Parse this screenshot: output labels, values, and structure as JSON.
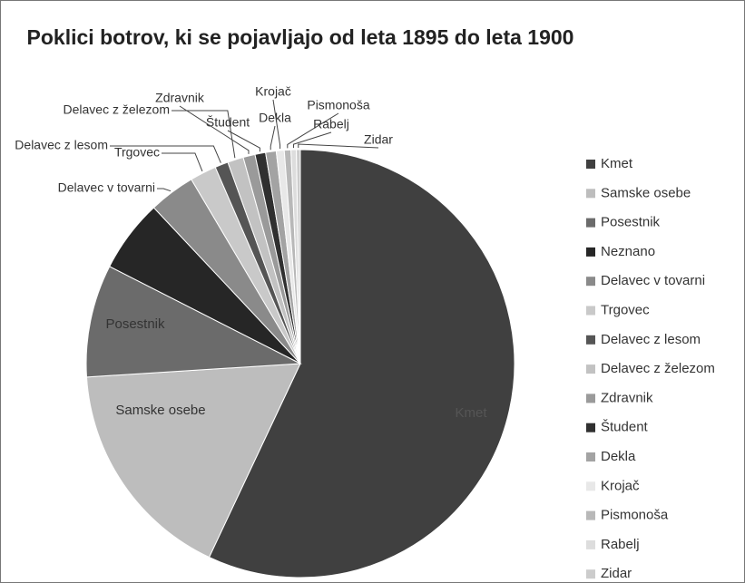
{
  "chart_data": {
    "type": "pie",
    "title": "Poklici botrov, ki se pojavljajo od leta 1895 do leta 1900",
    "categories": [
      "Kmet",
      "Samske osebe",
      "Posestnik",
      "Neznano",
      "Delavec v tovarni",
      "Trgovec",
      "Delavec z lesom",
      "Delavec z železom",
      "Zdravnik",
      "Študent",
      "Dekla",
      "Krojač",
      "Pismonoša",
      "Rabelj",
      "Zidar"
    ],
    "values": [
      57,
      17,
      8.5,
      5.5,
      3.5,
      2,
      1,
      1.2,
      0.9,
      0.8,
      0.8,
      0.6,
      0.5,
      0.4,
      0.3
    ],
    "colors": [
      "#404040",
      "#bdbdbd",
      "#6b6b6b",
      "#262626",
      "#8a8a8a",
      "#c9c9c9",
      "#555555",
      "#c2c2c2",
      "#9a9a9a",
      "#303030",
      "#a3a3a3",
      "#e8e8e8",
      "#b8b8b8",
      "#dddddd",
      "#cccccc"
    ],
    "legend": "right"
  }
}
